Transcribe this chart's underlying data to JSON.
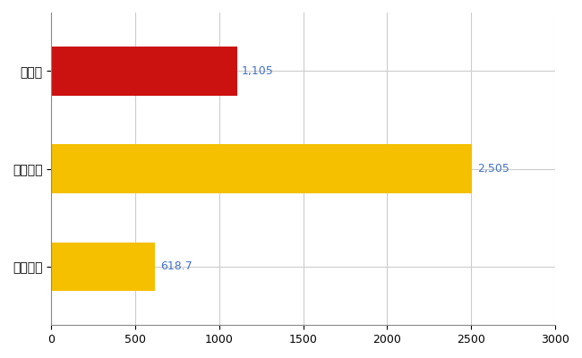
{
  "categories": [
    "全国平均",
    "全国最大",
    "兵庫県"
  ],
  "values": [
    618.7,
    2505,
    1105
  ],
  "bar_colors": [
    "#F5C000",
    "#F5C000",
    "#CC1111"
  ],
  "value_labels": [
    "618.7",
    "2,505",
    "1,105"
  ],
  "xlim": [
    0,
    3000
  ],
  "xticks": [
    0,
    500,
    1000,
    1500,
    2000,
    2500,
    3000
  ],
  "value_label_color": "#4472C4",
  "grid_color": "#CCCCCC",
  "bar_height": 0.5,
  "figsize": [
    6.5,
    4.0
  ],
  "dpi": 100
}
